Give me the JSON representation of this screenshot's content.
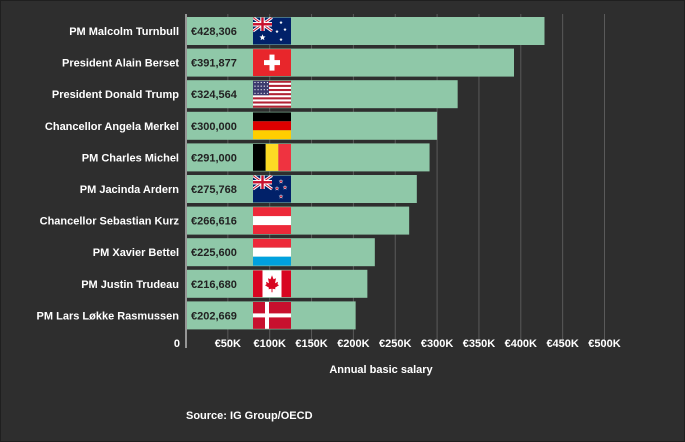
{
  "chart_data": {
    "type": "bar",
    "orientation": "horizontal",
    "categories": [
      "PM Malcolm Turnbull",
      "President Alain Berset",
      "President Donald Trump",
      "Chancellor Angela Merkel",
      "PM Charles Michel",
      "PM Jacinda Ardern",
      "Chancellor Sebastian Kurz",
      "PM Xavier Bettel",
      "PM Justin Trudeau",
      "PM Lars Løkke Rasmussen"
    ],
    "values": [
      428306,
      391877,
      324564,
      300000,
      291000,
      275768,
      266616,
      225600,
      216680,
      202669
    ],
    "value_labels": [
      "€428,306",
      "€391,877",
      "€324,564",
      "€300,000",
      "€291,000",
      "€275,768",
      "€266,616",
      "€225,600",
      "€216,680",
      "€202,669"
    ],
    "flags": [
      "australia",
      "switzerland",
      "usa",
      "germany",
      "belgium",
      "new-zealand",
      "austria",
      "luxembourg",
      "canada",
      "denmark"
    ],
    "xlabel": "Annual basic salary",
    "xlim": [
      0,
      500000
    ],
    "x_ticks": [
      0,
      50000,
      100000,
      150000,
      200000,
      250000,
      300000,
      350000,
      400000,
      450000,
      500000
    ],
    "x_tick_labels": [
      "0",
      "€50K",
      "€100K",
      "€150K",
      "€200K",
      "€250K",
      "€300K",
      "€350K",
      "€400K",
      "€450K",
      "€500K"
    ],
    "grid": "vertical",
    "bar_color": "#8fc8a8"
  },
  "source": "Source: IG Group/OECD",
  "colors": {
    "background": "#2e2e2e",
    "bar": "#8fc8a8",
    "gridline": "#5a5a5a",
    "text": "#ffffff"
  }
}
